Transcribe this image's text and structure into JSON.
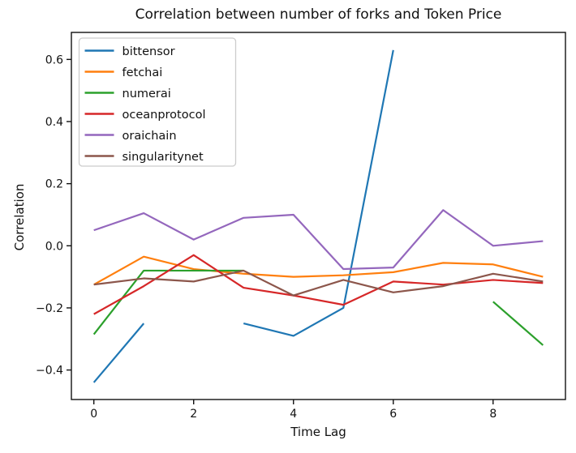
{
  "chart_data": {
    "type": "line",
    "title": "Correlation between number of forks and Token Price",
    "xlabel": "Time Lag",
    "ylabel": "Correlation",
    "x": [
      0,
      1,
      2,
      3,
      4,
      5,
      6,
      7,
      8,
      9
    ],
    "series": [
      {
        "name": "bittensor",
        "color": "#1f77b4",
        "values": [
          -0.44,
          -0.25,
          null,
          -0.25,
          -0.29,
          -0.2,
          0.63,
          null,
          null,
          null
        ]
      },
      {
        "name": "fetchai",
        "color": "#ff7f0e",
        "values": [
          -0.125,
          -0.035,
          -0.075,
          -0.09,
          -0.1,
          -0.095,
          -0.085,
          -0.055,
          -0.06,
          -0.1
        ]
      },
      {
        "name": "numerai",
        "color": "#2ca02c",
        "values": [
          -0.285,
          -0.08,
          -0.08,
          -0.08,
          null,
          null,
          null,
          null,
          -0.18,
          -0.32
        ]
      },
      {
        "name": "oceanprotocol",
        "color": "#d62728",
        "values": [
          -0.22,
          -0.13,
          -0.03,
          -0.135,
          -0.16,
          -0.19,
          -0.115,
          -0.125,
          -0.11,
          -0.12
        ]
      },
      {
        "name": "oraichain",
        "color": "#9467bd",
        "values": [
          0.05,
          0.105,
          0.02,
          0.09,
          0.1,
          -0.075,
          -0.07,
          0.115,
          0.0,
          0.015
        ]
      },
      {
        "name": "singularitynet",
        "color": "#8c564b",
        "values": [
          -0.125,
          -0.105,
          -0.115,
          -0.08,
          -0.16,
          -0.11,
          -0.15,
          -0.13,
          -0.09,
          -0.115
        ]
      }
    ],
    "xlim": [
      -0.45,
      9.45
    ],
    "ylim": [
      -0.495,
      0.687
    ],
    "xticks": {
      "values": [
        0,
        2,
        4,
        6,
        8
      ],
      "labels": [
        "0",
        "2",
        "4",
        "6",
        "8"
      ]
    },
    "yticks": {
      "values": [
        0.6,
        0.4,
        0.2,
        0.0,
        -0.2,
        -0.4
      ],
      "labels": [
        "0.6",
        "0.4",
        "0.2",
        "0.0",
        "−0.2",
        "−0.4"
      ]
    },
    "legend": {
      "position": "upper-left",
      "entries": [
        "bittensor",
        "fetchai",
        "numerai",
        "oceanprotocol",
        "oraichain",
        "singularitynet"
      ]
    },
    "grid": false,
    "styles": {
      "spine_color": "#111111",
      "legend_border": "#cccccc",
      "background": "#ffffff"
    }
  }
}
